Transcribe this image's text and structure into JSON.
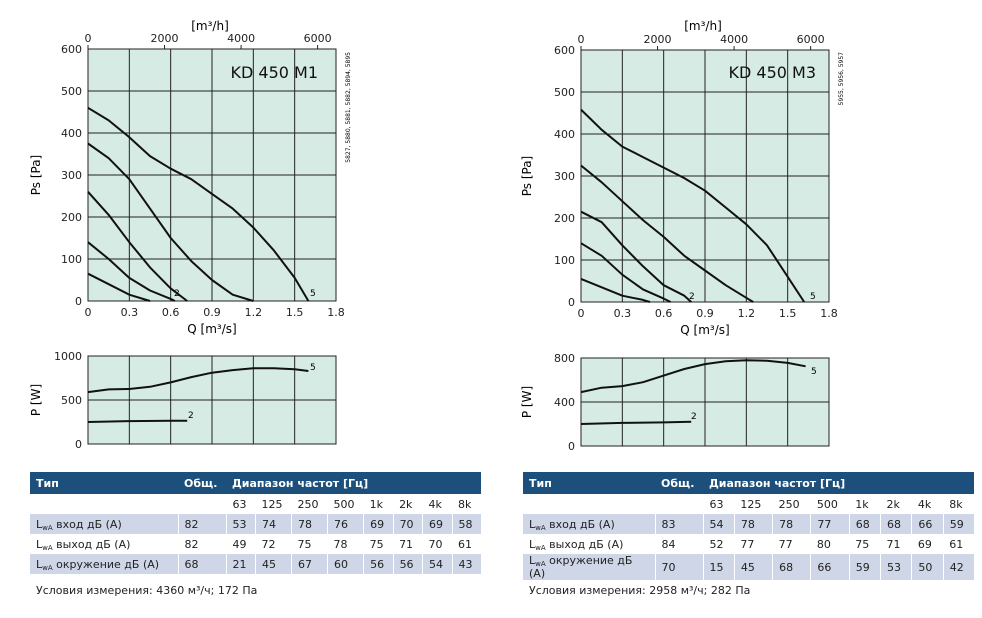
{
  "panels": [
    {
      "model": "KD 450 M1",
      "codes": "5827, 5880, 5881, 5882, 5894, 5895",
      "top_axis_unit": "[m³/h]",
      "top_ticks": [
        "0",
        "2000",
        "4000",
        "6000"
      ],
      "ps_ylabel": "Ps [Pa]",
      "ps_yticks": [
        "0",
        "100",
        "200",
        "300",
        "400",
        "500",
        "600"
      ],
      "q_xlabel": "Q [m³/s]",
      "q_xticks": [
        "0",
        "0.3",
        "0.6",
        "0.9",
        "1.2",
        "1.5",
        "1.8"
      ],
      "p_ylabel": "P [W]",
      "p_yticks": [
        "0",
        "500",
        "1000"
      ],
      "curve_label_low": "2",
      "curve_label_high": "5",
      "table": {
        "headers": [
          "Тип",
          "Общ.",
          "Диапазон частот [Гц]"
        ],
        "freqs": [
          "63",
          "125",
          "250",
          "500",
          "1k",
          "2k",
          "4k",
          "8k"
        ],
        "rows": [
          {
            "L": "L",
            "sub": "wA",
            "label": " вход дБ (A)",
            "total": "82",
            "values": [
              "53",
              "74",
              "78",
              "76",
              "69",
              "70",
              "69",
              "58"
            ]
          },
          {
            "L": "L",
            "sub": "wA",
            "label": " выход дБ (A)",
            "total": "82",
            "values": [
              "49",
              "72",
              "75",
              "78",
              "75",
              "71",
              "70",
              "61"
            ]
          },
          {
            "L": "L",
            "sub": "wA",
            "label": " окружение дБ (A)",
            "total": "68",
            "values": [
              "21",
              "45",
              "67",
              "60",
              "56",
              "56",
              "54",
              "43"
            ]
          }
        ]
      },
      "conditions": "Условия измерения: 4360 м³/ч; 172 Па"
    },
    {
      "model": "KD 450 M3",
      "codes": "5955, 5956, 5957",
      "top_axis_unit": "[m³/h]",
      "top_ticks": [
        "0",
        "2000",
        "4000",
        "6000"
      ],
      "ps_ylabel": "Ps [Pa]",
      "ps_yticks": [
        "0",
        "100",
        "200",
        "300",
        "400",
        "500",
        "600"
      ],
      "q_xlabel": "Q [m³/s]",
      "q_xticks": [
        "0",
        "0.3",
        "0.6",
        "0.9",
        "1.2",
        "1.5",
        "1.8"
      ],
      "p_ylabel": "P [W]",
      "p_yticks": [
        "0",
        "400",
        "800"
      ],
      "curve_label_low": "2",
      "curve_label_high": "5",
      "table": {
        "headers": [
          "Тип",
          "Общ.",
          "Диапазон частот [Гц]"
        ],
        "freqs": [
          "63",
          "125",
          "250",
          "500",
          "1k",
          "2k",
          "4k",
          "8k"
        ],
        "rows": [
          {
            "L": "L",
            "sub": "wA",
            "label": " вход дБ (A)",
            "total": "83",
            "values": [
              "54",
              "78",
              "78",
              "77",
              "68",
              "68",
              "66",
              "59"
            ]
          },
          {
            "L": "L",
            "sub": "wA",
            "label": " выход дБ (A)",
            "total": "84",
            "values": [
              "52",
              "77",
              "77",
              "80",
              "75",
              "71",
              "69",
              "61"
            ]
          },
          {
            "L": "L",
            "sub": "wA",
            "label": " окружение дБ (A)",
            "total": "70",
            "values": [
              "15",
              "45",
              "68",
              "66",
              "59",
              "53",
              "50",
              "42"
            ]
          }
        ]
      },
      "conditions": "Условия измерения: 2958 м³/ч; 282 Па"
    }
  ],
  "colors": {
    "plot_bg": "#d6ebe4",
    "grid": "#222222",
    "table_header": "#1d4f7c",
    "row_shade": "#cfd6e8"
  },
  "chart_data": [
    {
      "type": "line",
      "title": "KD 450 M1",
      "xlabel": "Q [m³/s]",
      "ylabel": "Ps [Pa]",
      "xlim": [
        0,
        1.8
      ],
      "ylim": [
        0,
        600
      ],
      "grid": true,
      "series": [
        {
          "name": "",
          "points": [
            [
              0,
              65
            ],
            [
              0.15,
              40
            ],
            [
              0.3,
              15
            ],
            [
              0.45,
              0
            ]
          ]
        },
        {
          "name": "",
          "points": [
            [
              0,
              140
            ],
            [
              0.15,
              100
            ],
            [
              0.3,
              55
            ],
            [
              0.45,
              25
            ],
            [
              0.6,
              5
            ],
            [
              0.63,
              0
            ]
          ]
        },
        {
          "name": "2",
          "points": [
            [
              0,
              260
            ],
            [
              0.15,
              205
            ],
            [
              0.3,
              140
            ],
            [
              0.45,
              80
            ],
            [
              0.6,
              30
            ],
            [
              0.72,
              0
            ]
          ]
        },
        {
          "name": "",
          "points": [
            [
              0,
              375
            ],
            [
              0.15,
              340
            ],
            [
              0.3,
              290
            ],
            [
              0.45,
              220
            ],
            [
              0.6,
              150
            ],
            [
              0.75,
              95
            ],
            [
              0.9,
              50
            ],
            [
              1.05,
              15
            ],
            [
              1.2,
              0
            ]
          ]
        },
        {
          "name": "5",
          "points": [
            [
              0,
              460
            ],
            [
              0.15,
              430
            ],
            [
              0.3,
              390
            ],
            [
              0.45,
              345
            ],
            [
              0.6,
              315
            ],
            [
              0.75,
              290
            ],
            [
              0.9,
              255
            ],
            [
              1.05,
              220
            ],
            [
              1.2,
              175
            ],
            [
              1.35,
              120
            ],
            [
              1.5,
              55
            ],
            [
              1.6,
              0
            ]
          ]
        }
      ]
    },
    {
      "type": "line",
      "title": "",
      "xlabel": "",
      "ylabel": "P [W]",
      "xlim": [
        0,
        1.8
      ],
      "ylim": [
        0,
        1000
      ],
      "grid": true,
      "series": [
        {
          "name": "2",
          "points": [
            [
              0,
              250
            ],
            [
              0.3,
              260
            ],
            [
              0.6,
              265
            ],
            [
              0.72,
              265
            ]
          ]
        },
        {
          "name": "5",
          "points": [
            [
              0,
              590
            ],
            [
              0.15,
              620
            ],
            [
              0.3,
              625
            ],
            [
              0.45,
              650
            ],
            [
              0.6,
              700
            ],
            [
              0.75,
              760
            ],
            [
              0.9,
              810
            ],
            [
              1.05,
              840
            ],
            [
              1.2,
              860
            ],
            [
              1.35,
              860
            ],
            [
              1.5,
              850
            ],
            [
              1.6,
              830
            ]
          ]
        }
      ]
    },
    {
      "type": "line",
      "title": "KD 450 M3",
      "xlabel": "Q [m³/s]",
      "ylabel": "Ps [Pa]",
      "xlim": [
        0,
        1.8
      ],
      "ylim": [
        0,
        600
      ],
      "grid": true,
      "series": [
        {
          "name": "",
          "points": [
            [
              0,
              55
            ],
            [
              0.15,
              35
            ],
            [
              0.3,
              15
            ],
            [
              0.45,
              5
            ],
            [
              0.5,
              0
            ]
          ]
        },
        {
          "name": "",
          "points": [
            [
              0,
              140
            ],
            [
              0.15,
              110
            ],
            [
              0.3,
              65
            ],
            [
              0.45,
              30
            ],
            [
              0.6,
              8
            ],
            [
              0.65,
              0
            ]
          ]
        },
        {
          "name": "2",
          "points": [
            [
              0,
              215
            ],
            [
              0.15,
              190
            ],
            [
              0.3,
              135
            ],
            [
              0.45,
              85
            ],
            [
              0.6,
              40
            ],
            [
              0.75,
              15
            ],
            [
              0.8,
              0
            ]
          ]
        },
        {
          "name": "",
          "points": [
            [
              0,
              325
            ],
            [
              0.15,
              285
            ],
            [
              0.3,
              240
            ],
            [
              0.45,
              195
            ],
            [
              0.6,
              155
            ],
            [
              0.75,
              110
            ],
            [
              0.9,
              75
            ],
            [
              1.05,
              40
            ],
            [
              1.2,
              10
            ],
            [
              1.25,
              0
            ]
          ]
        },
        {
          "name": "5",
          "points": [
            [
              0,
              458
            ],
            [
              0.15,
              410
            ],
            [
              0.3,
              370
            ],
            [
              0.45,
              345
            ],
            [
              0.6,
              320
            ],
            [
              0.75,
              295
            ],
            [
              0.9,
              265
            ],
            [
              1.05,
              225
            ],
            [
              1.2,
              185
            ],
            [
              1.35,
              135
            ],
            [
              1.5,
              60
            ],
            [
              1.62,
              0
            ]
          ]
        }
      ]
    },
    {
      "type": "line",
      "title": "",
      "xlabel": "",
      "ylabel": "P [W]",
      "xlim": [
        0,
        1.8
      ],
      "ylim": [
        0,
        800
      ],
      "grid": true,
      "series": [
        {
          "name": "2",
          "points": [
            [
              0,
              200
            ],
            [
              0.3,
              210
            ],
            [
              0.6,
              215
            ],
            [
              0.8,
              220
            ]
          ]
        },
        {
          "name": "5",
          "points": [
            [
              0,
              490
            ],
            [
              0.15,
              530
            ],
            [
              0.3,
              545
            ],
            [
              0.45,
              580
            ],
            [
              0.6,
              640
            ],
            [
              0.75,
              700
            ],
            [
              0.9,
              745
            ],
            [
              1.05,
              770
            ],
            [
              1.2,
              780
            ],
            [
              1.35,
              775
            ],
            [
              1.5,
              755
            ],
            [
              1.63,
              725
            ]
          ]
        }
      ]
    }
  ]
}
